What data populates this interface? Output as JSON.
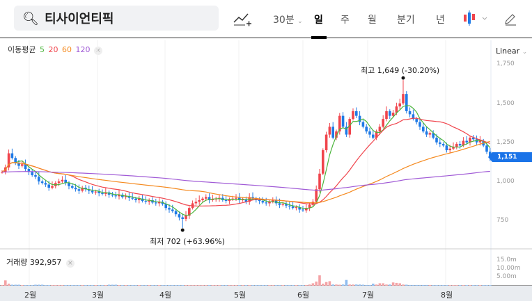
{
  "search": {
    "query": "티사이언티픽",
    "icon": "search-icon"
  },
  "toolbar": {
    "interval": "30분",
    "tabs": [
      "일",
      "주",
      "월",
      "분기",
      "년"
    ],
    "active": "일",
    "chart_type_icon": "candle-icon",
    "draw_icon": "pencil-icon",
    "indicator_icon": "add-indicator-icon"
  },
  "ma_legend": {
    "label": "이동평균",
    "periods": [
      "5",
      "20",
      "60",
      "120"
    ],
    "colors": [
      "#4cb53c",
      "#f0444c",
      "#f58a1f",
      "#a05ad6"
    ]
  },
  "scale": "Linear",
  "price_axis": [
    "1,750",
    "1,500",
    "1,250",
    "1,000",
    "750"
  ],
  "current_price": "1,151",
  "high_note": "최고 1,649 (-30.20%)",
  "low_note": "최저 702 (+63.96%)",
  "volume": {
    "label": "거래량 392,957",
    "axis": [
      "15.0m",
      "10.00m",
      "5.00m"
    ]
  },
  "months": [
    "2월",
    "3월",
    "4월",
    "5월",
    "6월",
    "7월",
    "8월"
  ],
  "colors": {
    "up": "#f0444c",
    "down": "#1e7ae6",
    "up_vol": "#f4a3a6",
    "down_vol": "#8fbcf0"
  },
  "chart_data": {
    "type": "candlestick",
    "closes": [
      1060,
      1090,
      1180,
      1150,
      1120,
      1100,
      1110,
      1080,
      1060,
      1040,
      1030,
      1000,
      990,
      980,
      960,
      970,
      990,
      1000,
      1010,
      990,
      970,
      960,
      950,
      940,
      960,
      950,
      940,
      930,
      935,
      925,
      920,
      930,
      915,
      910,
      905,
      915,
      900,
      905,
      895,
      890,
      880,
      890,
      875,
      870,
      880,
      865,
      860,
      870,
      855,
      830,
      820,
      810,
      790,
      770,
      760,
      780,
      830,
      860,
      870,
      880,
      890,
      900,
      880,
      885,
      890,
      895,
      880,
      875,
      885,
      890,
      895,
      880,
      885,
      870,
      900,
      890,
      880,
      875,
      865,
      860,
      870,
      880,
      860,
      850,
      855,
      845,
      840,
      830,
      835,
      820,
      815,
      830,
      850,
      870,
      950,
      1050,
      1200,
      1300,
      1350,
      1280,
      1320,
      1420,
      1350,
      1300,
      1400,
      1450,
      1420,
      1380,
      1350,
      1320,
      1300,
      1280,
      1320,
      1350,
      1400,
      1450,
      1420,
      1440,
      1480,
      1500,
      1560,
      1450,
      1430,
      1400,
      1380,
      1350,
      1320,
      1300,
      1310,
      1280,
      1250,
      1240,
      1230,
      1200,
      1210,
      1220,
      1240,
      1230,
      1260,
      1250,
      1280,
      1270,
      1250,
      1260,
      1230,
      1190,
      1151
    ],
    "volumes_m": [
      0.5,
      6,
      2,
      0.8,
      0.8,
      0.8,
      0.3,
      0.3,
      0.3,
      0.3,
      0.8,
      0.8,
      0.8,
      0.3,
      0.3,
      0.3,
      0.3,
      0.3,
      0.3,
      0.3,
      0.3,
      0.3,
      0.3,
      0.3,
      0.3,
      0.3,
      0.3,
      0.3,
      0.3,
      0.3,
      0.3,
      0.3,
      0.8,
      0.8,
      0.8,
      0.3,
      0.3,
      0.3,
      0.3,
      0.3,
      0.3,
      0.3,
      0.3,
      0.3,
      0.3,
      0.3,
      0.3,
      0.3,
      0.3,
      0.3,
      0.3,
      0.3,
      0.3,
      0.3,
      0.3,
      0.3,
      0.3,
      0.3,
      0.3,
      0.3,
      0.3,
      0.3,
      0.3,
      0.3,
      0.3,
      0.3,
      0.3,
      0.3,
      0.3,
      0.3,
      0.3,
      0.3,
      0.3,
      0.3,
      0.3,
      0.3,
      0.3,
      0.3,
      0.3,
      0.3,
      0.3,
      0.3,
      0.3,
      0.3,
      0.3,
      0.3,
      0.3,
      0.3,
      0.3,
      0.3,
      0.3,
      0.5,
      1,
      2.5,
      4.5,
      12,
      2,
      4,
      5,
      1,
      1,
      0.8,
      1,
      6.5,
      1,
      1,
      1,
      1,
      0.8,
      0.5,
      0.5,
      2,
      1,
      2.5,
      2.5,
      1,
      1,
      3.5,
      3,
      2.5,
      1,
      0.8,
      0.5,
      0.5,
      0.5,
      0.5,
      0.5,
      0.5,
      0.5,
      0.3,
      0.3,
      0.3,
      0.3,
      0.3,
      0.3,
      0.3,
      0.3,
      0.3,
      0.3,
      0.3,
      0.3,
      0.3,
      0.3,
      0.3,
      0.3,
      0.3,
      0.3
    ],
    "high": 1649,
    "low": 702,
    "y_axis": [
      750,
      1000,
      1250,
      1500,
      1750
    ]
  }
}
